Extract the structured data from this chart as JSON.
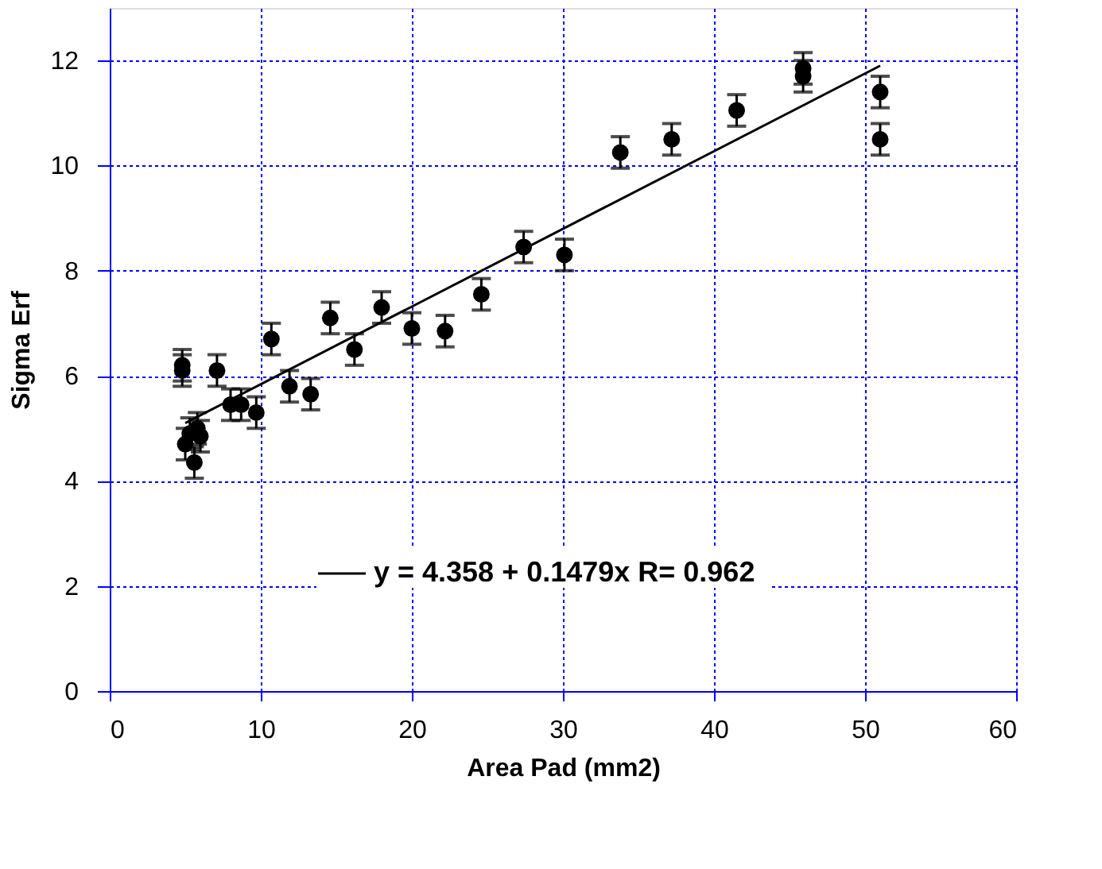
{
  "chart_data": {
    "type": "scatter",
    "xlabel": "Area Pad (mm2)",
    "ylabel": "Sigma Erf",
    "xlim": [
      0,
      60
    ],
    "ylim": [
      0,
      13
    ],
    "xticks": [
      0,
      10,
      20,
      30,
      40,
      50,
      60
    ],
    "yticks": [
      0,
      2,
      4,
      6,
      8,
      10,
      12
    ],
    "grid": true,
    "legend": "bottom",
    "marker": "circle",
    "series": [
      {
        "color": "#000000",
        "x": [
          4.8,
          4.8,
          5.0,
          5.3,
          5.6,
          5.8,
          6.0,
          7.1,
          8.0,
          8.7,
          9.7,
          10.7,
          11.9,
          13.3,
          14.6,
          16.2,
          18.0,
          20.0,
          22.2,
          24.6,
          27.4,
          30.1,
          33.8,
          37.2,
          41.5,
          45.9,
          45.9,
          51.0,
          51.0
        ],
        "values": [
          6.1,
          6.2,
          4.7,
          4.9,
          4.35,
          5.0,
          4.85,
          6.1,
          5.45,
          5.45,
          5.3,
          6.7,
          5.8,
          5.65,
          7.1,
          6.5,
          7.3,
          6.9,
          6.85,
          7.55,
          8.45,
          8.3,
          10.25,
          10.5,
          11.05,
          11.7,
          11.85,
          11.4,
          10.5
        ],
        "errors": [
          0.3,
          0.3,
          0.3,
          0.3,
          0.3,
          0.3,
          0.3,
          0.3,
          0.3,
          0.3,
          0.3,
          0.3,
          0.3,
          0.3,
          0.3,
          0.3,
          0.3,
          0.3,
          0.3,
          0.3,
          0.3,
          0.3,
          0.3,
          0.3,
          0.3,
          0.3,
          0.3,
          0.3,
          0.3
        ]
      },
      {
        "type": "line",
        "name": "y = 4.358 + 0.1479x   R= 0.962",
        "color": "#000000",
        "line_style": "solid",
        "marker": "none",
        "x": [
          5.0,
          51.0
        ],
        "values": [
          5.1,
          11.9
        ]
      }
    ]
  }
}
